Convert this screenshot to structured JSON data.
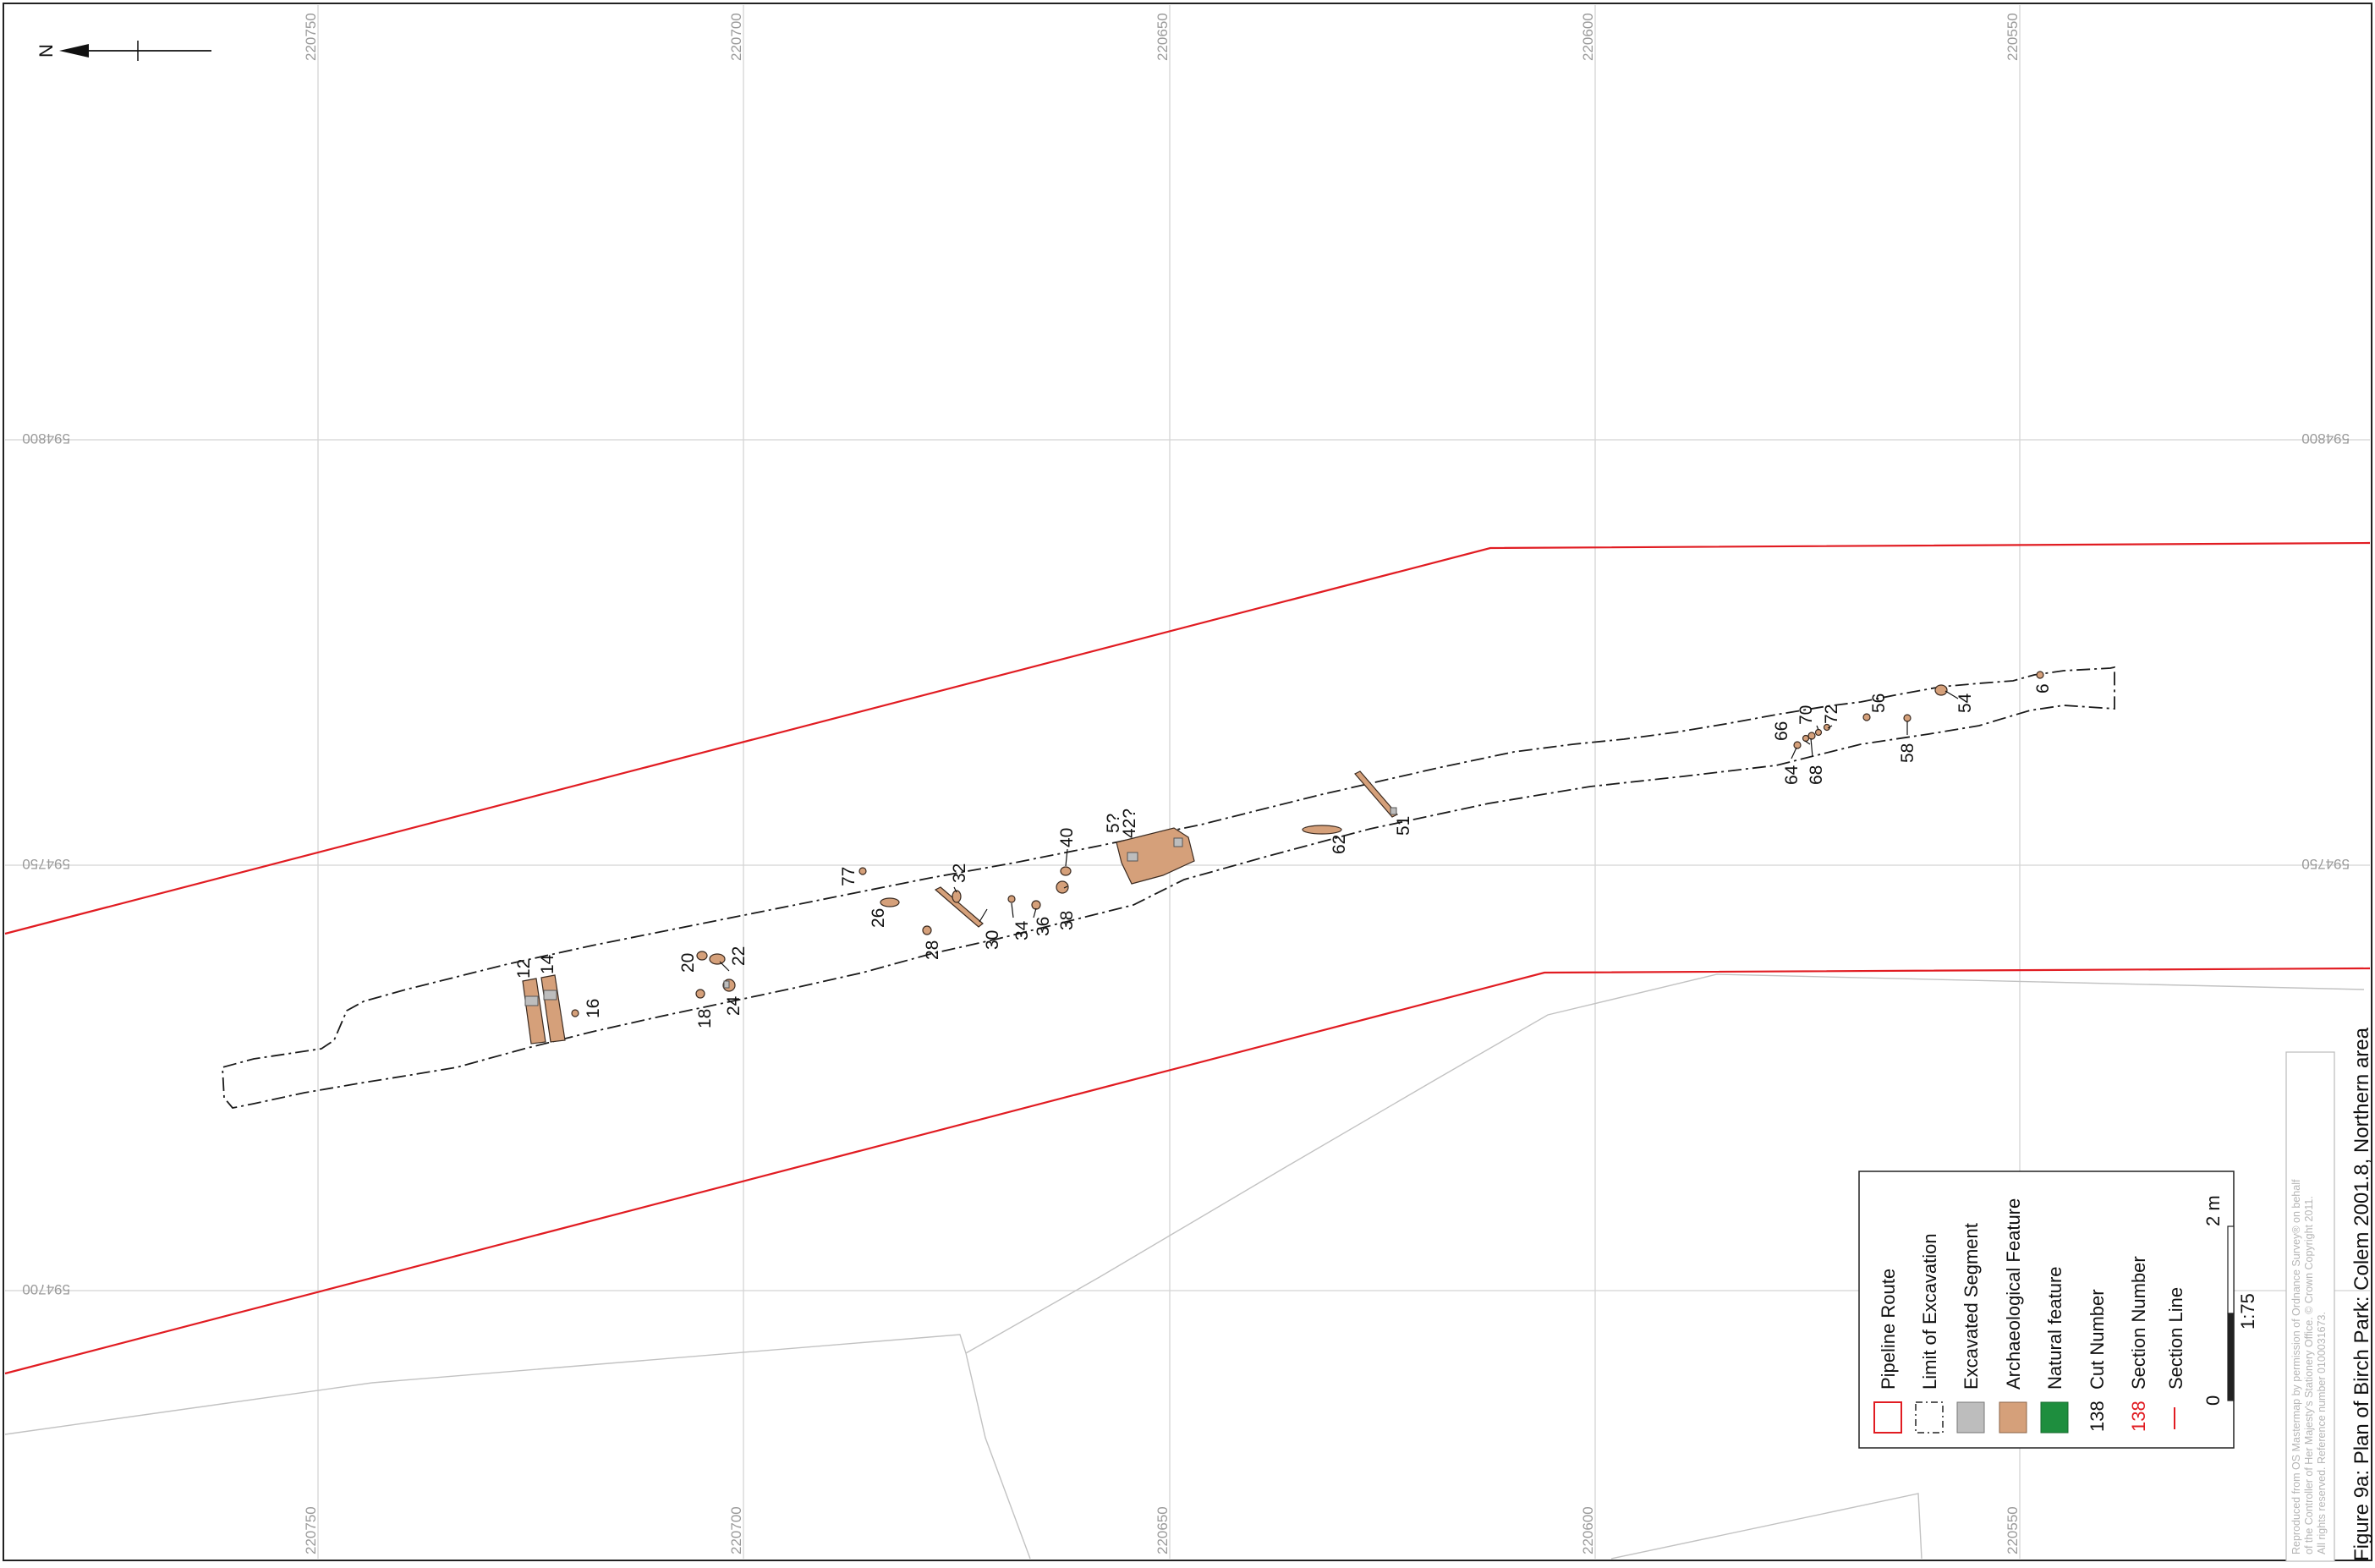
{
  "map": {
    "north_label": "N",
    "easting_labels": [
      "220750",
      "220700",
      "220650",
      "220600",
      "220550"
    ],
    "northing_labels": [
      "594800",
      "594750",
      "594700"
    ],
    "cut_labels": [
      "12",
      "14",
      "16",
      "18",
      "20",
      "22",
      "24",
      "26",
      "28",
      "30",
      "32",
      "34",
      "36",
      "38",
      "40",
      "5?",
      "42?",
      "77",
      "62",
      "51",
      "64",
      "66",
      "68",
      "70",
      "72",
      "56",
      "58",
      "54",
      "6"
    ]
  },
  "legend": {
    "items": [
      {
        "label": "Pipeline Route",
        "symbol": "red-outline"
      },
      {
        "label": "Limit of Excavation",
        "symbol": "dashed-outline"
      },
      {
        "label": "Excavated Segment",
        "symbol": "grey-fill"
      },
      {
        "label": "Archaeological Feature",
        "symbol": "orange-fill"
      },
      {
        "label": "Natural feature",
        "symbol": "green-fill"
      },
      {
        "label": "Cut Number",
        "symbol": "text",
        "sample": "138"
      },
      {
        "label": "Section Number",
        "symbol": "red-text",
        "sample": "138"
      },
      {
        "label": "Section Line",
        "symbol": "red-line"
      }
    ],
    "scale": {
      "zero": "0",
      "max": "2 m",
      "ratio": "1:75"
    }
  },
  "credit": {
    "line1": "Reproduced from OS Mastermap by permission of Ordnance Survey® on behalf",
    "line2": "of the Controller of Her Majesty's Stationery Office. © Crown Copyright 2011.",
    "line3": "All rights reserved. Reference number 0100031673."
  },
  "caption": "Figure 9a: Plan of Birch Park: Colem 2001.8, Northern area",
  "colors": {
    "pipeline": "#e11c22",
    "archaeological_feature": "#d5a07a",
    "excavated_segment": "#bdbdbd",
    "natural_feature": "#1e8e3e"
  }
}
